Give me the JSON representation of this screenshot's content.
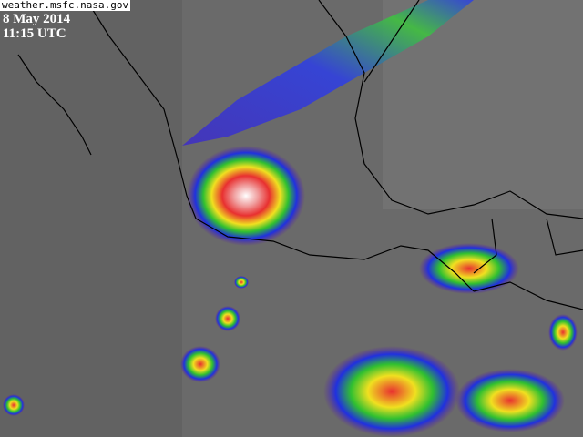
{
  "credit": "weather.msfc.nasa.gov",
  "date": "8 May 2014",
  "time": "11:15 UTC",
  "colors": {
    "background": "#6a6a6a",
    "coast": "#000000",
    "storm_core": "#ffffff",
    "storm_red": "#e83030",
    "storm_yellow": "#f0e020",
    "storm_green": "#30c030",
    "storm_blue": "#2030e0",
    "storm_purple": "#6020a0"
  }
}
